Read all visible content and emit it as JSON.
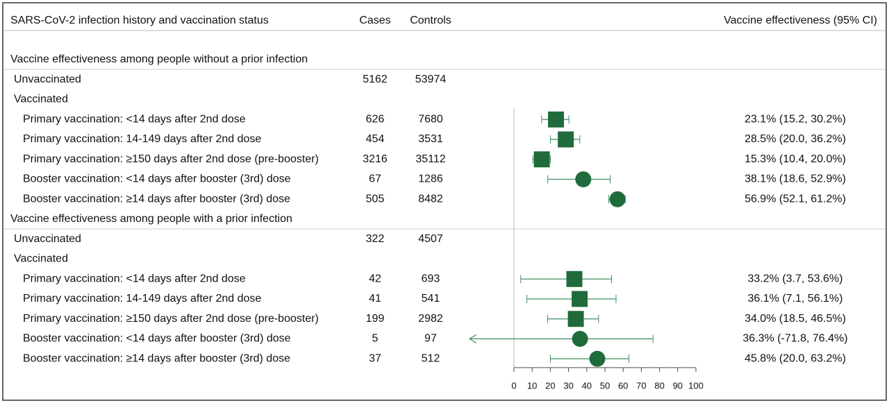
{
  "chart_data": {
    "type": "forest",
    "headers": {
      "label": "SARS-CoV-2 infection history and vaccination status",
      "cases": "Cases",
      "controls": "Controls",
      "effect": "Vaccine effectiveness (95% CI)"
    },
    "color": "#1f6b3b",
    "ci_color": "#3f8f5e",
    "xlim": [
      0,
      100
    ],
    "xticks": [
      0,
      10,
      20,
      30,
      40,
      50,
      60,
      70,
      80,
      90,
      100
    ],
    "sections": [
      {
        "title": "Vaccine effectiveness among people without a prior infection",
        "unvaccinated": {
          "label": "Unvaccinated",
          "cases": 5162,
          "controls": 53974
        },
        "vaccinated": {
          "label": "Vaccinated",
          "rows": [
            {
              "label": "Primary vaccination: <14 days after 2nd dose",
              "cases": 626,
              "controls": 7680,
              "marker": "square",
              "value": 23.1,
              "ci": [
                15.2,
                30.2
              ],
              "value_label": "23.1% (15.2, 30.2%)"
            },
            {
              "label": "Primary vaccination: 14-149 days after 2nd dose",
              "cases": 454,
              "controls": 3531,
              "marker": "square",
              "value": 28.5,
              "ci": [
                20.0,
                36.2
              ],
              "value_label": "28.5% (20.0, 36.2%)"
            },
            {
              "label": "Primary vaccination: ≥150 days after 2nd dose (pre-booster)",
              "cases": 3216,
              "controls": 35112,
              "marker": "square",
              "value": 15.3,
              "ci": [
                10.4,
                20.0
              ],
              "value_label": "15.3% (10.4, 20.0%)"
            },
            {
              "label": "Booster vaccination: <14 days after booster (3rd) dose",
              "cases": 67,
              "controls": 1286,
              "marker": "circle",
              "value": 38.1,
              "ci": [
                18.6,
                52.9
              ],
              "value_label": "38.1% (18.6, 52.9%)"
            },
            {
              "label": "Booster vaccination: ≥14 days after booster (3rd) dose",
              "cases": 505,
              "controls": 8482,
              "marker": "circle",
              "value": 56.9,
              "ci": [
                52.1,
                61.2
              ],
              "value_label": "56.9% (52.1, 61.2%)"
            }
          ]
        }
      },
      {
        "title": "Vaccine effectiveness among people with a prior infection",
        "unvaccinated": {
          "label": "Unvaccinated",
          "cases": 322,
          "controls": 4507
        },
        "vaccinated": {
          "label": "Vaccinated",
          "rows": [
            {
              "label": "Primary vaccination: <14 days after 2nd dose",
              "cases": 42,
              "controls": 693,
              "marker": "square",
              "value": 33.2,
              "ci": [
                3.7,
                53.6
              ],
              "value_label": "33.2% (3.7, 53.6%)"
            },
            {
              "label": "Primary vaccination: 14-149 days after 2nd dose",
              "cases": 41,
              "controls": 541,
              "marker": "square",
              "value": 36.1,
              "ci": [
                7.1,
                56.1
              ],
              "value_label": "36.1% (7.1, 56.1%)"
            },
            {
              "label": "Primary vaccination: ≥150 days after 2nd dose (pre-booster)",
              "cases": 199,
              "controls": 2982,
              "marker": "square",
              "value": 34.0,
              "ci": [
                18.5,
                46.5
              ],
              "value_label": "34.0% (18.5, 46.5%)"
            },
            {
              "label": "Booster vaccination: <14 days after booster (3rd) dose",
              "cases": 5,
              "controls": 97,
              "marker": "circle",
              "value": 36.3,
              "ci": [
                -71.8,
                76.4
              ],
              "value_label": "36.3% (-71.8, 76.4%)"
            },
            {
              "label": "Booster vaccination: ≥14 days after booster (3rd) dose",
              "cases": 37,
              "controls": 512,
              "marker": "circle",
              "value": 45.8,
              "ci": [
                20.0,
                63.2
              ],
              "value_label": "45.8% (20.0, 63.2%)"
            }
          ]
        }
      }
    ]
  }
}
